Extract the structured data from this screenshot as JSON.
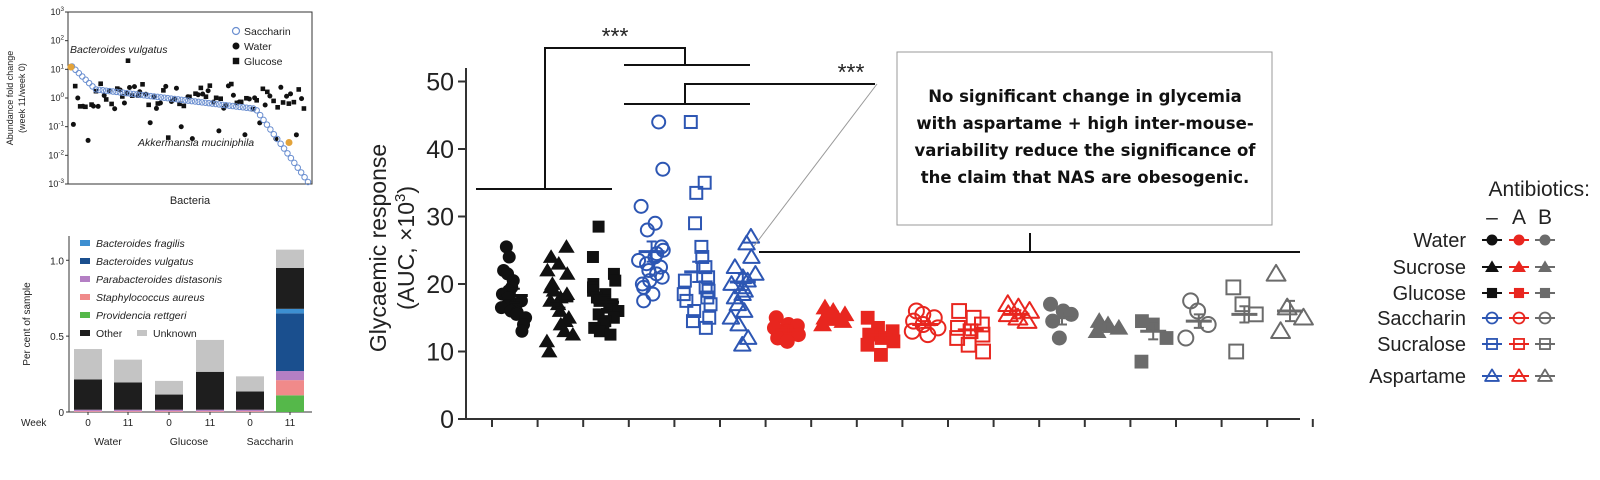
{
  "colors": {
    "water": "#111111",
    "red": "#e8261f",
    "grey": "#6b6b6b",
    "blue": "#2d56b3",
    "saccharin_open": "#6b8fd0",
    "orange": "#e3a33a"
  },
  "chart_data": [
    {
      "type": "scatter",
      "title": "",
      "xlabel": "Bacteria",
      "ylabel_line1": "Abundance fold change",
      "ylabel_line2": "(week 11/week 0)",
      "yscale": "log",
      "ylim": [
        0.001,
        1000
      ],
      "yticks": [
        {
          "base": "10",
          "exp": "-3"
        },
        {
          "base": "10",
          "exp": "-2"
        },
        {
          "base": "10",
          "exp": "-1"
        },
        {
          "base": "10",
          "exp": "0"
        },
        {
          "base": "10",
          "exp": "1"
        },
        {
          "base": "10",
          "exp": "2"
        },
        {
          "base": "10",
          "exp": "3"
        }
      ],
      "legend": [
        {
          "name": "Saccharin",
          "marker": "open-circle"
        },
        {
          "name": "Water",
          "marker": "filled-circle"
        },
        {
          "name": "Glucose",
          "marker": "filled-square"
        }
      ],
      "annotations": [
        "Bacteroides vulgatus",
        "Akkermansia muciniphila"
      ],
      "highlight": [
        {
          "name": "Bacteroides vulgatus",
          "value": 12
        },
        {
          "name": "Akkermansia muciniphila",
          "value": 0.028
        }
      ]
    },
    {
      "type": "bar",
      "stacked": true,
      "ylabel": "Per cent of sample",
      "xlabel_prefix": "Week",
      "ylim": [
        0,
        1.0
      ],
      "yticks": [
        "0",
        "0.5",
        "1.0"
      ],
      "categories": [
        "0",
        "11",
        "0",
        "11",
        "0",
        "11"
      ],
      "groups": [
        "Water",
        "Glucose",
        "Saccharin"
      ],
      "legend": [
        {
          "name": "Bacteroides fragilis",
          "color": "#3d8fd1"
        },
        {
          "name": "Bacteroides vulgatus",
          "color": "#1a4f8e"
        },
        {
          "name": "Parabacteroides distasonis",
          "color": "#b47fc4"
        },
        {
          "name": "Staphylococcus aureus",
          "color": "#f08a8a"
        },
        {
          "name": "Providencia rettgeri",
          "color": "#55b84a"
        }
      ],
      "legend_other": [
        {
          "name": "Other",
          "color": "#1e1e1e"
        },
        {
          "name": "Unknown",
          "color": "#c4c4c4"
        }
      ],
      "series": [
        {
          "name": "Providencia rettgeri",
          "color": "#55b84a",
          "values": [
            0,
            0,
            0,
            0,
            0,
            0.11
          ]
        },
        {
          "name": "Staphylococcus aureus",
          "color": "#f08a8a",
          "values": [
            0.005,
            0.005,
            0.005,
            0.005,
            0.005,
            0.1
          ]
        },
        {
          "name": "Parabacteroides distasonis",
          "color": "#b47fc4",
          "values": [
            0.01,
            0.01,
            0.01,
            0.01,
            0.01,
            0.06
          ]
        },
        {
          "name": "Bacteroides vulgatus",
          "color": "#1a4f8e",
          "values": [
            0,
            0,
            0,
            0,
            0,
            0.38
          ]
        },
        {
          "name": "Bacteroides fragilis",
          "color": "#3d8fd1",
          "values": [
            0,
            0,
            0,
            0,
            0,
            0.03
          ]
        },
        {
          "name": "Other",
          "color": "#1e1e1e",
          "values": [
            0.2,
            0.18,
            0.1,
            0.25,
            0.12,
            0.27
          ]
        },
        {
          "name": "Unknown",
          "color": "#c4c4c4",
          "values": [
            0.2,
            0.15,
            0.09,
            0.21,
            0.1,
            0.12
          ]
        }
      ]
    },
    {
      "type": "scatter",
      "title": "",
      "ylabel": "Glycaemic response",
      "ylabel_unit": "(AUC, ×10",
      "ylabel_exp": "3",
      "ylabel_close": ")",
      "ylim": [
        0,
        50
      ],
      "yticks": [
        "0",
        "10",
        "20",
        "30",
        "40",
        "50"
      ],
      "significance": [
        "***",
        "***"
      ],
      "callout": [
        "No significant change in glycemia",
        "with aspartame + high inter-mouse-",
        "variability reduce the significance of",
        "the claim that NAS are obesogenic."
      ],
      "legend_title": "Antibiotics:",
      "legend_columns": [
        "–",
        "A",
        "B"
      ],
      "legend_rows": [
        {
          "name": "Water",
          "marker": "filled-circle"
        },
        {
          "name": "Sucrose",
          "marker": "filled-triangle"
        },
        {
          "name": "Glucose",
          "marker": "filled-square"
        },
        {
          "name": "Saccharin",
          "marker": "open-circle"
        },
        {
          "name": "Sucralose",
          "marker": "open-square"
        },
        {
          "name": "Aspartame",
          "marker": "open-triangle"
        }
      ],
      "groups": [
        {
          "name": "Water –",
          "marker": "filled-circle",
          "color": "#111111",
          "mean": 18.3,
          "sem": 1,
          "values": [
            25.5,
            24,
            22,
            21.5,
            20.5,
            19.5,
            19,
            18.5,
            18,
            17.5,
            17,
            16.8,
            16.5,
            16,
            15.8,
            15.5,
            15,
            14,
            13
          ]
        },
        {
          "name": "Sucrose –",
          "marker": "filled-triangle",
          "color": "#111111",
          "mean": 17.5,
          "sem": 1,
          "values": [
            25.5,
            24,
            23,
            22,
            21.5,
            20,
            19.5,
            19,
            18.5,
            18,
            17.5,
            17,
            16,
            15,
            14.5,
            14,
            13,
            12.5,
            11.5,
            10
          ]
        },
        {
          "name": "Glucose –",
          "marker": "filled-square",
          "color": "#111111",
          "mean": 17.3,
          "sem": 1,
          "values": [
            28.5,
            24,
            21.5,
            20.5,
            20,
            19.5,
            19,
            18.5,
            18,
            17.5,
            17,
            16.5,
            16,
            15.5,
            15,
            14.5,
            14,
            13.5,
            13,
            12.5
          ]
        },
        {
          "name": "Saccharin –",
          "marker": "open-circle",
          "color": "#2d56b3",
          "mean": 24.8,
          "sem": 1.5,
          "values": [
            44,
            37,
            31.5,
            29,
            28,
            25.5,
            25,
            24.5,
            24,
            23.5,
            23,
            22.5,
            22,
            21.5,
            21,
            20.5,
            20,
            19.5,
            18.5,
            17.5
          ]
        },
        {
          "name": "Sucralose –",
          "marker": "open-square",
          "color": "#2d56b3",
          "mean": 21.8,
          "sem": 1.5,
          "values": [
            44,
            35,
            33.5,
            29,
            25.5,
            24,
            22.5,
            21,
            20.5,
            19.5,
            19,
            18.5,
            18,
            17.5,
            17,
            16,
            15,
            14.5,
            13.5
          ]
        },
        {
          "name": "Aspartame –",
          "marker": "open-triangle",
          "color": "#2d56b3",
          "mean": 20.3,
          "sem": 1.2,
          "values": [
            27,
            26,
            24,
            22.5,
            21.5,
            21,
            20.5,
            20,
            19.5,
            19,
            18.5,
            18,
            17,
            16,
            15,
            14,
            12,
            11
          ]
        },
        {
          "name": "Water A",
          "marker": "filled-circle",
          "color": "#e8261f",
          "mean": 13.2,
          "sem": 0.6,
          "values": [
            15,
            14,
            13.8,
            13.5,
            13,
            12.5,
            12,
            11.5
          ]
        },
        {
          "name": "Sucrose A",
          "marker": "filled-triangle",
          "color": "#e8261f",
          "mean": 15.3,
          "sem": 0.6,
          "values": [
            16.5,
            16,
            15.5,
            15,
            14.8,
            14.5,
            14
          ]
        },
        {
          "name": "Glucose A",
          "marker": "filled-square",
          "color": "#e8261f",
          "mean": 12.5,
          "sem": 0.7,
          "values": [
            15,
            13.5,
            13,
            12.5,
            12,
            11.5,
            11,
            9.5
          ]
        },
        {
          "name": "Saccharin A",
          "marker": "open-circle",
          "color": "#e8261f",
          "mean": 14,
          "sem": 0.5,
          "values": [
            16,
            15.5,
            15,
            14.5,
            14,
            13.5,
            13,
            12.5
          ]
        },
        {
          "name": "Sucralose A",
          "marker": "open-square",
          "color": "#e8261f",
          "mean": 13.2,
          "sem": 0.8,
          "values": [
            16,
            15,
            14,
            13.5,
            13,
            12.5,
            12,
            11,
            10
          ]
        },
        {
          "name": "Aspartame A",
          "marker": "open-triangle",
          "color": "#e8261f",
          "mean": 15.5,
          "sem": 0.6,
          "values": [
            17,
            16.5,
            16,
            15.5,
            15,
            14.5
          ]
        },
        {
          "name": "Water B",
          "marker": "filled-circle",
          "color": "#6b6b6b",
          "mean": 15,
          "sem": 1,
          "values": [
            17,
            16,
            15.5,
            14.5,
            12
          ]
        },
        {
          "name": "Sucrose B",
          "marker": "filled-triangle",
          "color": "#6b6b6b",
          "mean": 13.5,
          "sem": 0.6,
          "values": [
            14.5,
            14,
            13.5,
            13
          ]
        },
        {
          "name": "Glucose B",
          "marker": "filled-square",
          "color": "#6b6b6b",
          "mean": 13,
          "sem": 1.2,
          "values": [
            14.5,
            14,
            12,
            8.5
          ]
        },
        {
          "name": "Saccharin B",
          "marker": "open-circle",
          "color": "#6b6b6b",
          "mean": 14.5,
          "sem": 1,
          "values": [
            17.5,
            16,
            14,
            12
          ]
        },
        {
          "name": "Sucralose B",
          "marker": "open-square",
          "color": "#6b6b6b",
          "mean": 15.5,
          "sem": 1.2,
          "values": [
            19.5,
            17,
            15.5,
            10
          ]
        },
        {
          "name": "Aspartame B",
          "marker": "open-triangle",
          "color": "#6b6b6b",
          "mean": 16,
          "sem": 1.5,
          "values": [
            21.5,
            16.5,
            15,
            13
          ]
        }
      ]
    }
  ]
}
